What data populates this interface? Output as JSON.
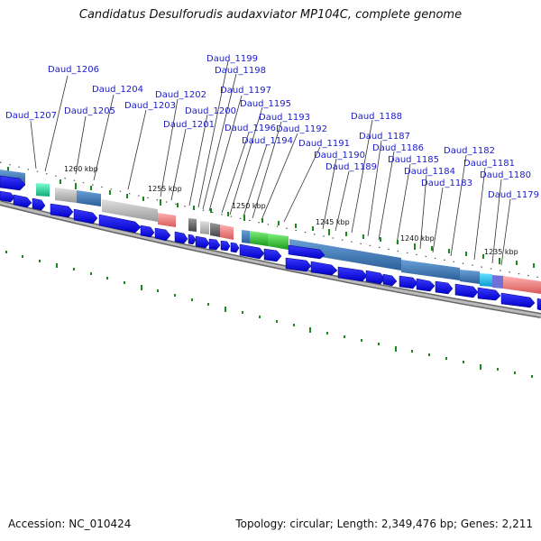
{
  "title": "Candidatus Desulforudis audaxviator MP104C, complete genome",
  "footer": {
    "accession": "Accession: NC_010424",
    "summary": "Topology: circular; Length: 2,349,476 bp; Genes: 2,211"
  },
  "gene_labels": [
    "Daud_1207",
    "Daud_1206",
    "Daud_1205",
    "Daud_1204",
    "Daud_1203",
    "Daud_1202",
    "Daud_1201",
    "Daud_1200",
    "Daud_1199",
    "Daud_1198",
    "Daud_1197",
    "Daud_1196",
    "Daud_1195",
    "Daud_1194",
    "Daud_1193",
    "Daud_1192",
    "Daud_1191",
    "Daud_1190",
    "Daud_1189",
    "Daud_1188",
    "Daud_1187",
    "Daud_1186",
    "Daud_1185",
    "Daud_1184",
    "Daud_1183",
    "Daud_1182",
    "Daud_1181",
    "Daud_1180",
    "Daud_1179"
  ],
  "kbp_labels": [
    "1260 kbp",
    "1255 kbp",
    "1250 kbp",
    "1245 kbp",
    "1240 kbp",
    "1235 kbp"
  ],
  "colors": {
    "label": "#1a1acc",
    "gene_arrow": "#0a0ae6",
    "tick": "#1a8a1a",
    "backbone": "#888888"
  }
}
